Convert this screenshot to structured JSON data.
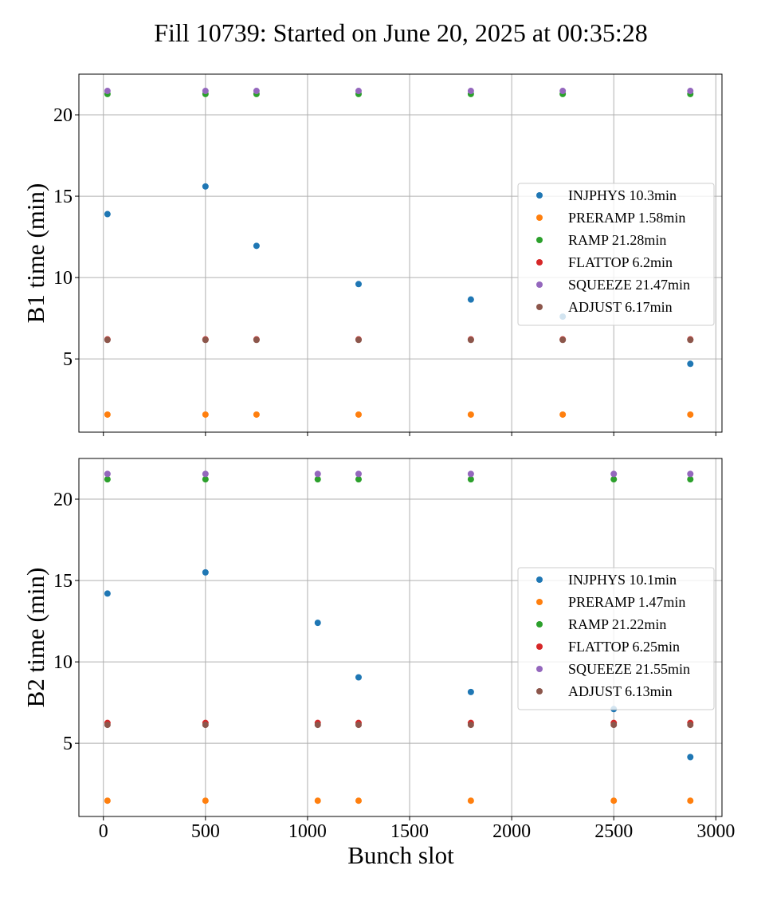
{
  "title": "Fill 10739: Started on June 20, 2025 at 00:35:28",
  "chart_data": {
    "type": "scatter",
    "title": "Fill 10739: Started on June 20, 2025 at 00:35:28",
    "xlabel": "Bunch slot",
    "xlim": [
      -120,
      3030
    ],
    "x_ticks": [
      "0",
      "500",
      "1000",
      "1500",
      "2000",
      "2500",
      "3000"
    ],
    "grid": true,
    "shared_x": true,
    "panels": [
      {
        "ylabel": "B1 time (min)",
        "ylim": [
          0.5,
          22.5
        ],
        "y_ticks": [
          "5",
          "10",
          "15",
          "20"
        ],
        "legend_position": "center-right",
        "series": [
          {
            "name": "INJPHYS 10.3min",
            "color": "#1f77b4",
            "points": [
              [
                20,
                13.9
              ],
              [
                500,
                15.6
              ],
              [
                750,
                11.95
              ],
              [
                1250,
                9.6
              ],
              [
                1800,
                8.65
              ],
              [
                2250,
                7.6
              ],
              [
                2875,
                4.7
              ]
            ]
          },
          {
            "name": "PRERAMP 1.58min",
            "color": "#ff7f0e",
            "points": [
              [
                20,
                1.58
              ],
              [
                500,
                1.58
              ],
              [
                750,
                1.58
              ],
              [
                1250,
                1.58
              ],
              [
                1800,
                1.58
              ],
              [
                2250,
                1.58
              ],
              [
                2875,
                1.58
              ]
            ]
          },
          {
            "name": "RAMP 21.28min",
            "color": "#2ca02c",
            "points": [
              [
                20,
                21.28
              ],
              [
                500,
                21.28
              ],
              [
                750,
                21.28
              ],
              [
                1250,
                21.28
              ],
              [
                1800,
                21.28
              ],
              [
                2250,
                21.28
              ],
              [
                2875,
                21.28
              ]
            ]
          },
          {
            "name": "FLATTOP 6.2min",
            "color": "#d62728",
            "points": [
              [
                20,
                6.2
              ],
              [
                500,
                6.2
              ],
              [
                750,
                6.2
              ],
              [
                1250,
                6.2
              ],
              [
                1800,
                6.2
              ],
              [
                2250,
                6.2
              ],
              [
                2875,
                6.2
              ]
            ]
          },
          {
            "name": "SQUEEZE 21.47min",
            "color": "#9467bd",
            "points": [
              [
                20,
                21.47
              ],
              [
                500,
                21.47
              ],
              [
                750,
                21.47
              ],
              [
                1250,
                21.47
              ],
              [
                1800,
                21.47
              ],
              [
                2250,
                21.47
              ],
              [
                2875,
                21.47
              ]
            ]
          },
          {
            "name": "ADJUST 6.17min",
            "color": "#8c564b",
            "points": [
              [
                20,
                6.17
              ],
              [
                500,
                6.17
              ],
              [
                750,
                6.17
              ],
              [
                1250,
                6.17
              ],
              [
                1800,
                6.17
              ],
              [
                2250,
                6.17
              ],
              [
                2875,
                6.17
              ]
            ]
          }
        ]
      },
      {
        "ylabel": "B2 time (min)",
        "ylim": [
          0.5,
          22.5
        ],
        "y_ticks": [
          "5",
          "10",
          "15",
          "20"
        ],
        "legend_position": "center-right",
        "series": [
          {
            "name": "INJPHYS 10.1min",
            "color": "#1f77b4",
            "points": [
              [
                20,
                14.2
              ],
              [
                500,
                15.5
              ],
              [
                1050,
                12.4
              ],
              [
                1250,
                9.05
              ],
              [
                1800,
                8.15
              ],
              [
                2500,
                7.1
              ],
              [
                2875,
                4.15
              ]
            ]
          },
          {
            "name": "PRERAMP 1.47min",
            "color": "#ff7f0e",
            "points": [
              [
                20,
                1.47
              ],
              [
                500,
                1.47
              ],
              [
                1050,
                1.47
              ],
              [
                1250,
                1.47
              ],
              [
                1800,
                1.47
              ],
              [
                2500,
                1.47
              ],
              [
                2875,
                1.47
              ]
            ]
          },
          {
            "name": "RAMP 21.22min",
            "color": "#2ca02c",
            "points": [
              [
                20,
                21.22
              ],
              [
                500,
                21.22
              ],
              [
                1050,
                21.22
              ],
              [
                1250,
                21.22
              ],
              [
                1800,
                21.22
              ],
              [
                2500,
                21.22
              ],
              [
                2875,
                21.22
              ]
            ]
          },
          {
            "name": "FLATTOP 6.25min",
            "color": "#d62728",
            "points": [
              [
                20,
                6.25
              ],
              [
                500,
                6.25
              ],
              [
                1050,
                6.25
              ],
              [
                1250,
                6.25
              ],
              [
                1800,
                6.25
              ],
              [
                2500,
                6.25
              ],
              [
                2875,
                6.25
              ]
            ]
          },
          {
            "name": "SQUEEZE 21.55min",
            "color": "#9467bd",
            "points": [
              [
                20,
                21.55
              ],
              [
                500,
                21.55
              ],
              [
                1050,
                21.55
              ],
              [
                1250,
                21.55
              ],
              [
                1800,
                21.55
              ],
              [
                2500,
                21.55
              ],
              [
                2875,
                21.55
              ]
            ]
          },
          {
            "name": "ADJUST 6.13min",
            "color": "#8c564b",
            "points": [
              [
                20,
                6.13
              ],
              [
                500,
                6.13
              ],
              [
                1050,
                6.13
              ],
              [
                1250,
                6.13
              ],
              [
                1800,
                6.13
              ],
              [
                2500,
                6.13
              ],
              [
                2875,
                6.13
              ]
            ]
          }
        ]
      }
    ]
  }
}
